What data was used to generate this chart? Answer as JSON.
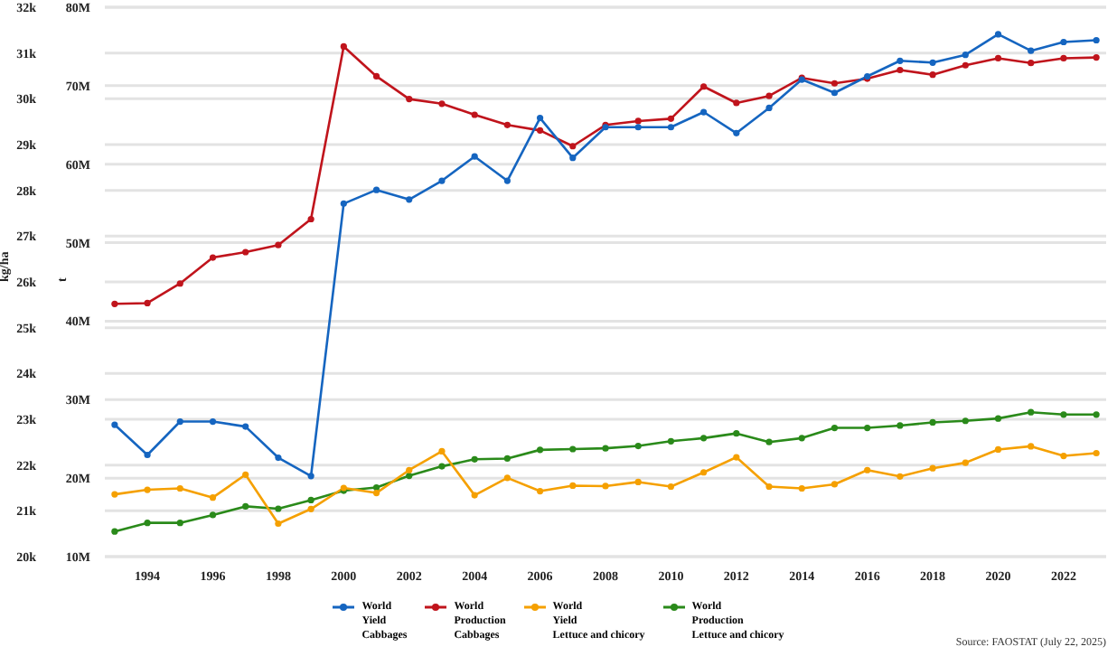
{
  "chart_data": {
    "type": "line",
    "ylabel": "t",
    "y2label": "kg/ha",
    "x": [
      1993,
      1994,
      1995,
      1996,
      1997,
      1998,
      1999,
      2000,
      2001,
      2002,
      2003,
      2004,
      2005,
      2006,
      2007,
      2008,
      2009,
      2010,
      2011,
      2012,
      2013,
      2014,
      2015,
      2016,
      2017,
      2018,
      2019,
      2020,
      2021,
      2022,
      2023
    ],
    "xlim": [
      1992.7,
      2023.3
    ],
    "xticks": [
      1994,
      1996,
      1998,
      2000,
      2002,
      2004,
      2006,
      2008,
      2010,
      2012,
      2014,
      2016,
      2018,
      2020,
      2022
    ],
    "ylim": [
      10000000,
      80000000
    ],
    "yticks": [
      {
        "value": 10000000,
        "label": "10M"
      },
      {
        "value": 20000000,
        "label": "20M"
      },
      {
        "value": 30000000,
        "label": "30M"
      },
      {
        "value": 40000000,
        "label": "40M"
      },
      {
        "value": 50000000,
        "label": "50M"
      },
      {
        "value": 60000000,
        "label": "60M"
      },
      {
        "value": 70000000,
        "label": "70M"
      },
      {
        "value": 80000000,
        "label": "80M"
      }
    ],
    "y2lim": [
      20000,
      32000
    ],
    "y2ticks": [
      {
        "value": 20000,
        "label": "20k"
      },
      {
        "value": 21000,
        "label": "21k"
      },
      {
        "value": 22000,
        "label": "22k"
      },
      {
        "value": 23000,
        "label": "23k"
      },
      {
        "value": 24000,
        "label": "24k"
      },
      {
        "value": 25000,
        "label": "25k"
      },
      {
        "value": 26000,
        "label": "26k"
      },
      {
        "value": 27000,
        "label": "27k"
      },
      {
        "value": 28000,
        "label": "28k"
      },
      {
        "value": 29000,
        "label": "29k"
      },
      {
        "value": 30000,
        "label": "30k"
      },
      {
        "value": 31000,
        "label": "31k"
      },
      {
        "value": 32000,
        "label": "32k"
      }
    ],
    "series": [
      {
        "name": "World\nYield\nCabbages",
        "color": "#1565c0",
        "axis": "y2",
        "values": [
          22880,
          22220,
          22950,
          22950,
          22840,
          22160,
          21760,
          27710,
          28010,
          27800,
          28210,
          28740,
          28210,
          29580,
          28710,
          29380,
          29380,
          29380,
          29710,
          29250,
          29800,
          30420,
          30130,
          30490,
          30830,
          30790,
          30960,
          31410,
          31050,
          31240,
          31280
        ]
      },
      {
        "name": "World\nProduction\nCabbages",
        "color": "#c0141c",
        "values": [
          42200000,
          42300000,
          44800000,
          48100000,
          48800000,
          49700000,
          53000000,
          75000000,
          71200000,
          68300000,
          67700000,
          66300000,
          65000000,
          64300000,
          62300000,
          65000000,
          65500000,
          65800000,
          69900000,
          67800000,
          68700000,
          71000000,
          70300000,
          70900000,
          72000000,
          71400000,
          72600000,
          73500000,
          72900000,
          73500000,
          73600000
        ]
      },
      {
        "name": "World\nYield\nLettuce and chicory",
        "color": "#f5a000",
        "axis": "y2",
        "values": [
          21360,
          21460,
          21490,
          21290,
          21790,
          20720,
          21040,
          21500,
          21390,
          21890,
          22300,
          21340,
          21720,
          21430,
          21550,
          21540,
          21630,
          21530,
          21840,
          22170,
          21530,
          21490,
          21580,
          21890,
          21750,
          21930,
          22050,
          22340,
          22410,
          22200,
          22260
        ]
      },
      {
        "name": "World\nProduction\nLettuce and chicory",
        "color": "#2a8a1a",
        "values": [
          13200000,
          14300000,
          14300000,
          15300000,
          16400000,
          16100000,
          17200000,
          18400000,
          18800000,
          20300000,
          21500000,
          22400000,
          22500000,
          23600000,
          23700000,
          23800000,
          24100000,
          24700000,
          25100000,
          25700000,
          24600000,
          25100000,
          26400000,
          26400000,
          26700000,
          27100000,
          27300000,
          27600000,
          28400000,
          28100000,
          28100000
        ]
      }
    ],
    "grid": "y",
    "legend": "bottom",
    "marker": "circle",
    "line_style": "solid",
    "annotations": [
      "Source: FAOSTAT (July 22, 2025)"
    ]
  }
}
